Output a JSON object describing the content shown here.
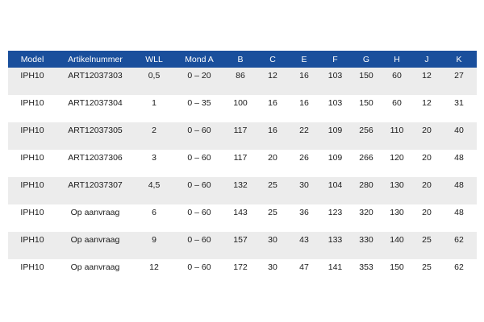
{
  "table": {
    "header_color": "#1a4f9c",
    "stripe_color": "#ececec",
    "columns": [
      "Model",
      "Artikelnummer",
      "WLL",
      "Mond A",
      "B",
      "C",
      "E",
      "F",
      "G",
      "H",
      "J",
      "K"
    ],
    "rows": [
      [
        "IPH10",
        "ART12037303",
        "0,5",
        "0 – 20",
        "86",
        "12",
        "16",
        "103",
        "150",
        "60",
        "12",
        "27"
      ],
      [
        "IPH10",
        "ART12037304",
        "1",
        "0 – 35",
        "100",
        "16",
        "16",
        "103",
        "150",
        "60",
        "12",
        "31"
      ],
      [
        "IPH10",
        "ART12037305",
        "2",
        "0 – 60",
        "117",
        "16",
        "22",
        "109",
        "256",
        "110",
        "20",
        "40"
      ],
      [
        "IPH10",
        "ART12037306",
        "3",
        "0 – 60",
        "117",
        "20",
        "26",
        "109",
        "266",
        "120",
        "20",
        "48"
      ],
      [
        "IPH10",
        "ART12037307",
        "4,5",
        "0 – 60",
        "132",
        "25",
        "30",
        "104",
        "280",
        "130",
        "20",
        "48"
      ],
      [
        "IPH10",
        "Op aanvraag",
        "6",
        "0 – 60",
        "143",
        "25",
        "36",
        "123",
        "320",
        "130",
        "20",
        "48"
      ],
      [
        "IPH10",
        "Op aanvraag",
        "9",
        "0 – 60",
        "157",
        "30",
        "43",
        "133",
        "330",
        "140",
        "25",
        "62"
      ],
      [
        "IPH10",
        "Op aanvraag",
        "12",
        "0 – 60",
        "172",
        "30",
        "47",
        "141",
        "353",
        "150",
        "25",
        "62"
      ]
    ]
  }
}
